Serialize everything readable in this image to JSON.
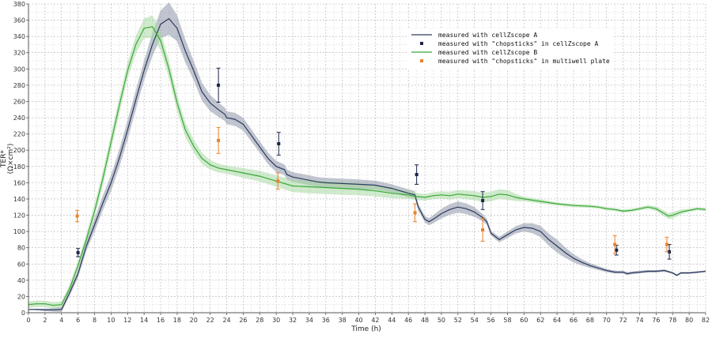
{
  "chart_data": {
    "type": "line",
    "xlabel": "Time (h)",
    "ylabel_lines": [
      "TER*",
      "(Ω×cm²)"
    ],
    "xlim": [
      0,
      82
    ],
    "ylim": [
      0,
      380
    ],
    "x_ticks": [
      0,
      2,
      4,
      6,
      8,
      10,
      12,
      14,
      16,
      18,
      20,
      22,
      24,
      26,
      28,
      30,
      32,
      34,
      36,
      38,
      40,
      42,
      44,
      46,
      48,
      50,
      52,
      54,
      56,
      58,
      60,
      62,
      64,
      66,
      68,
      70,
      72,
      74,
      76,
      78,
      80,
      82
    ],
    "y_ticks": [
      0,
      20,
      40,
      60,
      80,
      100,
      120,
      140,
      160,
      180,
      200,
      220,
      240,
      260,
      280,
      300,
      320,
      340,
      360,
      380
    ],
    "grid": true,
    "legend_position": "top-right",
    "legend": [
      {
        "label": "measured with cellZscope A",
        "kind": "line",
        "color": "#2d3a5e"
      },
      {
        "label": "measured with \"chopsticks\" in cellZscope A",
        "kind": "point",
        "color": "#1c2448"
      },
      {
        "label": "measured with cellZscope B",
        "kind": "line",
        "color": "#3aa838"
      },
      {
        "label": "measured with \"chopsticks\" in multiwell plate",
        "kind": "point",
        "color": "#e8822a"
      }
    ],
    "series": [
      {
        "name": "measured with cellZscope A",
        "color": "#2d3a5e",
        "band_color": "#8c95a8",
        "points": [
          [
            0,
            4
          ],
          [
            1,
            4
          ],
          [
            2,
            3.5
          ],
          [
            3,
            3.5
          ],
          [
            4,
            4
          ],
          [
            5,
            25
          ],
          [
            6,
            48
          ],
          [
            7,
            82
          ],
          [
            8,
            108
          ],
          [
            9,
            135
          ],
          [
            10,
            160
          ],
          [
            11,
            190
          ],
          [
            12,
            225
          ],
          [
            13,
            262
          ],
          [
            14,
            298
          ],
          [
            15,
            330
          ],
          [
            16,
            355
          ],
          [
            17,
            362
          ],
          [
            18,
            350
          ],
          [
            19,
            322
          ],
          [
            20,
            298
          ],
          [
            21,
            272
          ],
          [
            22,
            258
          ],
          [
            23,
            250
          ],
          [
            23.8,
            244
          ],
          [
            24,
            240
          ],
          [
            25,
            238
          ],
          [
            26,
            232
          ],
          [
            27,
            218
          ],
          [
            28,
            204
          ],
          [
            29,
            190
          ],
          [
            30,
            180
          ],
          [
            31,
            176
          ],
          [
            31.3,
            170
          ],
          [
            32,
            167
          ],
          [
            33,
            165
          ],
          [
            34,
            163
          ],
          [
            35,
            161
          ],
          [
            36,
            160
          ],
          [
            38,
            159
          ],
          [
            40,
            158
          ],
          [
            42,
            157
          ],
          [
            44,
            153
          ],
          [
            46,
            147
          ],
          [
            46.8,
            145
          ],
          [
            47.2,
            130
          ],
          [
            48,
            115
          ],
          [
            48.5,
            112
          ],
          [
            49,
            115
          ],
          [
            50,
            122
          ],
          [
            51,
            127
          ],
          [
            52,
            130
          ],
          [
            53,
            128
          ],
          [
            54,
            124
          ],
          [
            55,
            117
          ],
          [
            55.5,
            112
          ],
          [
            56,
            98
          ],
          [
            57,
            90
          ],
          [
            58,
            96
          ],
          [
            59,
            102
          ],
          [
            60,
            105
          ],
          [
            61,
            104
          ],
          [
            62,
            100
          ],
          [
            63,
            90
          ],
          [
            64,
            82
          ],
          [
            65,
            74
          ],
          [
            66,
            67
          ],
          [
            67,
            62
          ],
          [
            68,
            58
          ],
          [
            69,
            55
          ],
          [
            70,
            52
          ],
          [
            71,
            50
          ],
          [
            72,
            50
          ],
          [
            72.5,
            48
          ],
          [
            73,
            49
          ],
          [
            74,
            50
          ],
          [
            75,
            51
          ],
          [
            76,
            51
          ],
          [
            77,
            52
          ],
          [
            78,
            49
          ],
          [
            78.5,
            46
          ],
          [
            79,
            49
          ],
          [
            80,
            49
          ],
          [
            81,
            50
          ],
          [
            82,
            51
          ]
        ],
        "band": [
          [
            0,
            0
          ],
          [
            4,
            3
          ],
          [
            6,
            5
          ],
          [
            8,
            8
          ],
          [
            10,
            10
          ],
          [
            12,
            12
          ],
          [
            14,
            12
          ],
          [
            16,
            17
          ],
          [
            17,
            20
          ],
          [
            18,
            16
          ],
          [
            20,
            12
          ],
          [
            22,
            10
          ],
          [
            24,
            8
          ],
          [
            26,
            8
          ],
          [
            28,
            7
          ],
          [
            30,
            7
          ],
          [
            32,
            6
          ],
          [
            36,
            6
          ],
          [
            40,
            6
          ],
          [
            44,
            5
          ],
          [
            46,
            5
          ],
          [
            48,
            4
          ],
          [
            50,
            6
          ],
          [
            52,
            7
          ],
          [
            54,
            6
          ],
          [
            56,
            3
          ],
          [
            58,
            4
          ],
          [
            60,
            5
          ],
          [
            62,
            7
          ],
          [
            64,
            8
          ],
          [
            66,
            5
          ],
          [
            68,
            3
          ],
          [
            70,
            2
          ],
          [
            82,
            1
          ]
        ]
      },
      {
        "name": "measured with cellZscope B",
        "color": "#3aa838",
        "band_color": "#a7d9a3",
        "points": [
          [
            0,
            10
          ],
          [
            1,
            11
          ],
          [
            2,
            11
          ],
          [
            3,
            9
          ],
          [
            4,
            10
          ],
          [
            5,
            30
          ],
          [
            6,
            58
          ],
          [
            7,
            90
          ],
          [
            8,
            125
          ],
          [
            9,
            165
          ],
          [
            10,
            210
          ],
          [
            11,
            255
          ],
          [
            12,
            298
          ],
          [
            13,
            330
          ],
          [
            14,
            350
          ],
          [
            15,
            352
          ],
          [
            16,
            335
          ],
          [
            17,
            300
          ],
          [
            18,
            258
          ],
          [
            19,
            225
          ],
          [
            20,
            205
          ],
          [
            21,
            190
          ],
          [
            22,
            182
          ],
          [
            23,
            178
          ],
          [
            24,
            176
          ],
          [
            26,
            172
          ],
          [
            28,
            168
          ],
          [
            30,
            162
          ],
          [
            32,
            156
          ],
          [
            34,
            155
          ],
          [
            36,
            154
          ],
          [
            38,
            153
          ],
          [
            40,
            152
          ],
          [
            42,
            150
          ],
          [
            44,
            147
          ],
          [
            46,
            145
          ],
          [
            47,
            143
          ],
          [
            48,
            142
          ],
          [
            49,
            144
          ],
          [
            50,
            145
          ],
          [
            51,
            144
          ],
          [
            52,
            146
          ],
          [
            53,
            145
          ],
          [
            54,
            144
          ],
          [
            55,
            142
          ],
          [
            56,
            143
          ],
          [
            57,
            146
          ],
          [
            58,
            145
          ],
          [
            59,
            142
          ],
          [
            60,
            140
          ],
          [
            62,
            137
          ],
          [
            64,
            134
          ],
          [
            66,
            132
          ],
          [
            68,
            131
          ],
          [
            69,
            130
          ],
          [
            70,
            128
          ],
          [
            71,
            127
          ],
          [
            72,
            125
          ],
          [
            73,
            126
          ],
          [
            74,
            128
          ],
          [
            75,
            130
          ],
          [
            76,
            128
          ],
          [
            77,
            122
          ],
          [
            77.5,
            119
          ],
          [
            78,
            120
          ],
          [
            79,
            124
          ],
          [
            80,
            126
          ],
          [
            81,
            128
          ],
          [
            82,
            127
          ]
        ],
        "band": [
          [
            0,
            4
          ],
          [
            4,
            4
          ],
          [
            6,
            6
          ],
          [
            8,
            8
          ],
          [
            10,
            10
          ],
          [
            12,
            10
          ],
          [
            14,
            12
          ],
          [
            15,
            14
          ],
          [
            16,
            12
          ],
          [
            18,
            10
          ],
          [
            20,
            8
          ],
          [
            22,
            6
          ],
          [
            24,
            5
          ],
          [
            26,
            6
          ],
          [
            30,
            7
          ],
          [
            34,
            8
          ],
          [
            38,
            8
          ],
          [
            42,
            7
          ],
          [
            46,
            5
          ],
          [
            48,
            4
          ],
          [
            52,
            5
          ],
          [
            56,
            6
          ],
          [
            58,
            6
          ],
          [
            60,
            3
          ],
          [
            64,
            2
          ],
          [
            70,
            2
          ],
          [
            74,
            2
          ],
          [
            76,
            3
          ],
          [
            78,
            4
          ],
          [
            80,
            2
          ],
          [
            82,
            2
          ]
        ]
      }
    ],
    "point_series": [
      {
        "name": "measured with \"chopsticks\" in cellZscope A",
        "color": "#1c2448",
        "points": [
          {
            "x": 6,
            "y": 74,
            "err": 5
          },
          {
            "x": 23,
            "y": 280,
            "err": 21
          },
          {
            "x": 30.3,
            "y": 208,
            "err": 14
          },
          {
            "x": 47,
            "y": 170,
            "err": 12
          },
          {
            "x": 55,
            "y": 138,
            "err": 11
          },
          {
            "x": 71.2,
            "y": 77,
            "err": 6
          },
          {
            "x": 77.6,
            "y": 75,
            "err": 9
          }
        ]
      },
      {
        "name": "measured with \"chopsticks\" in multiwell plate",
        "color": "#e8822a",
        "points": [
          {
            "x": 5.9,
            "y": 119,
            "err": 7
          },
          {
            "x": 23,
            "y": 212,
            "err": 16
          },
          {
            "x": 30.2,
            "y": 162,
            "err": 10
          },
          {
            "x": 46.8,
            "y": 123,
            "err": 11
          },
          {
            "x": 55,
            "y": 102,
            "err": 14
          },
          {
            "x": 71,
            "y": 84,
            "err": 11
          },
          {
            "x": 77.3,
            "y": 84,
            "err": 9
          }
        ]
      }
    ]
  }
}
